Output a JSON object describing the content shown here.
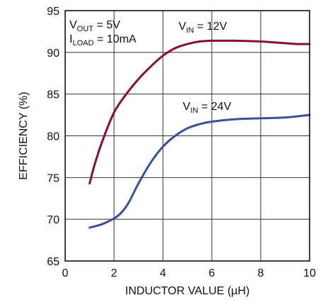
{
  "chart_data": {
    "type": "line",
    "xlabel": "INDUCTOR VALUE (µH)",
    "ylabel": "EFFICIENCY (%)",
    "xlim": [
      0,
      10
    ],
    "ylim": [
      65,
      95
    ],
    "xticks": [
      0,
      2,
      4,
      6,
      8,
      10
    ],
    "yticks": [
      65,
      70,
      75,
      80,
      85,
      90,
      95
    ],
    "grid": true,
    "series": [
      {
        "name": "VIN = 12V",
        "color": "#8a0f2e",
        "x": [
          1.0,
          1.2,
          1.5,
          2.0,
          2.5,
          3.0,
          3.5,
          4.0,
          4.5,
          5.0,
          5.5,
          6.0,
          6.5,
          7.0,
          8.0,
          9.0,
          9.5,
          10.0
        ],
        "y": [
          74.3,
          76.5,
          79.2,
          82.8,
          85.0,
          86.8,
          88.3,
          89.6,
          90.5,
          91.0,
          91.3,
          91.4,
          91.4,
          91.4,
          91.3,
          91.1,
          91.0,
          91.0
        ]
      },
      {
        "name": "VIN = 24V",
        "color": "#3a4fa0",
        "x": [
          1.0,
          1.5,
          2.0,
          2.3,
          2.6,
          3.0,
          3.5,
          4.0,
          4.5,
          5.0,
          5.5,
          6.0,
          7.0,
          8.0,
          9.0,
          10.0
        ],
        "y": [
          69.0,
          69.4,
          70.1,
          70.8,
          72.0,
          74.3,
          76.8,
          78.7,
          80.0,
          80.9,
          81.4,
          81.7,
          82.0,
          82.1,
          82.2,
          82.5
        ]
      }
    ],
    "annotations": [
      {
        "main": "V",
        "sub": "OUT",
        "rest": " = 5V"
      },
      {
        "main": "I",
        "sub": "LOAD",
        "rest": " = 10mA"
      },
      {
        "main": "V",
        "sub": "IN",
        "rest": " = 12V"
      },
      {
        "main": "V",
        "sub": "IN",
        "rest": " = 24V"
      }
    ]
  }
}
